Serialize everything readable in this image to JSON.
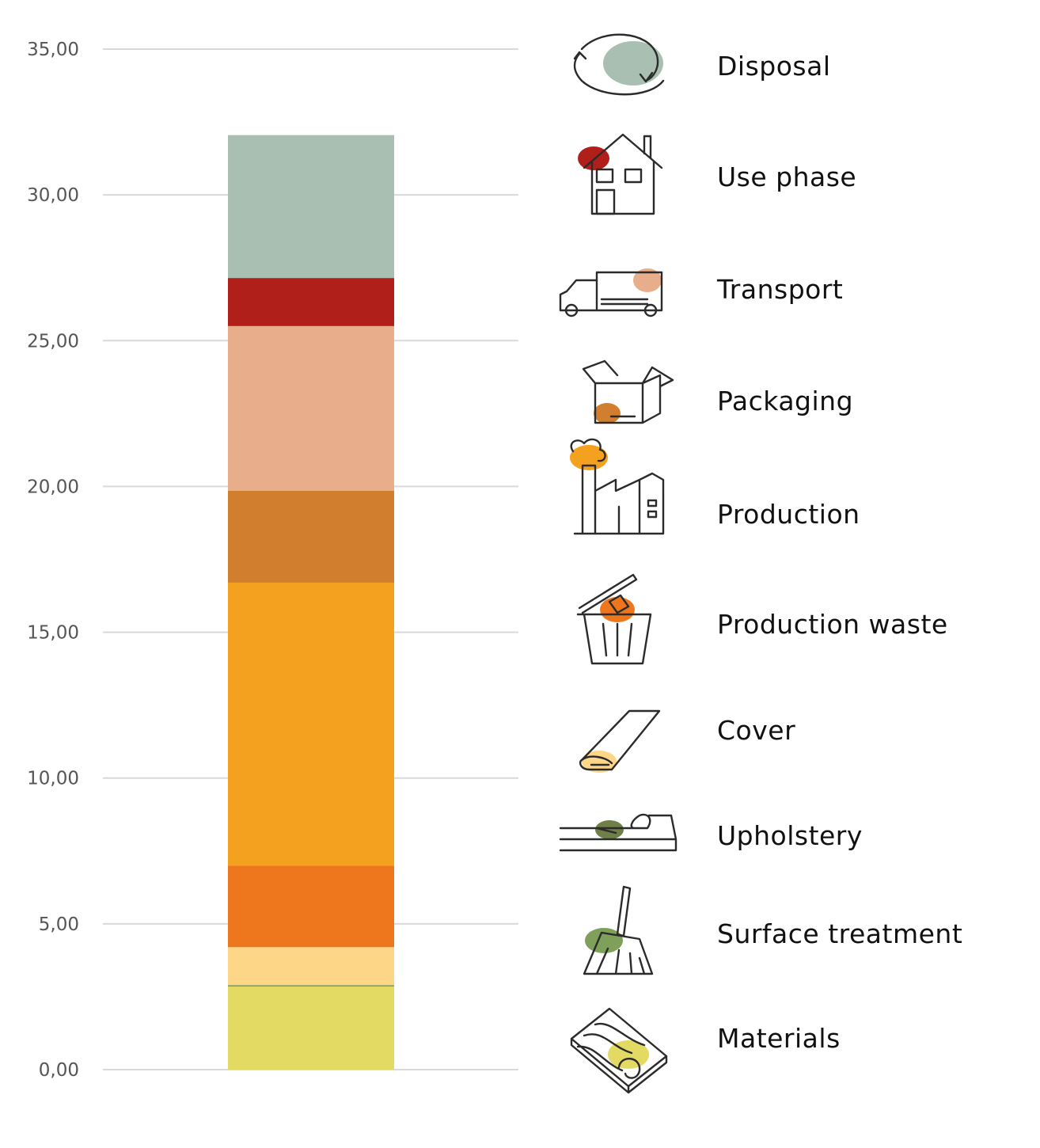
{
  "chart_data": {
    "type": "bar",
    "stacked": true,
    "ylim": [
      0,
      35
    ],
    "yticks": [
      "0,00",
      "5,00",
      "10,00",
      "15,00",
      "20,00",
      "25,00",
      "30,00",
      "35,00"
    ],
    "grid": true,
    "legend_placement": "right",
    "series": [
      {
        "name": "Materials",
        "value": 2.85,
        "color": "#E2DA63",
        "icon": "wood-plank-icon"
      },
      {
        "name": "Surface treatment",
        "value": 0.05,
        "color": "#7FA05A",
        "icon": "brush-icon"
      },
      {
        "name": "Upholstery",
        "value": 1.3,
        "color": "#FED688",
        "icon": "upholstery-foam-icon"
      },
      {
        "name": "Cover",
        "value": 2.8,
        "color": "#EE771E",
        "icon": "fabric-roll-icon"
      },
      {
        "name": "Production waste",
        "value": 9.7,
        "color": "#F4A11F",
        "icon": "trash-bin-icon"
      },
      {
        "name": "Production",
        "value": 3.15,
        "color": "#D17F2E",
        "icon": "factory-icon"
      },
      {
        "name": "Packaging",
        "value": 5.65,
        "color": "#E8AD8A",
        "icon": "box-icon"
      },
      {
        "name": "Transport",
        "value": 1.65,
        "color": "#B01F1A",
        "icon": "truck-icon"
      },
      {
        "name": "Use phase",
        "value": 4.9,
        "color": "#A9BFB1",
        "icon": "house-icon"
      }
    ],
    "legend": [
      {
        "name": "Disposal",
        "icon": "recycle-icon",
        "accent": "#A9BFB1"
      },
      {
        "name": "Use phase",
        "icon": "house-icon",
        "accent": "#B01F1A"
      },
      {
        "name": "Transport",
        "icon": "truck-icon",
        "accent": "#E8AD8A"
      },
      {
        "name": "Packaging",
        "icon": "box-icon",
        "accent": "#D17F2E"
      },
      {
        "name": "Production",
        "icon": "factory-icon",
        "accent": "#F4A11F"
      },
      {
        "name": "Production waste",
        "icon": "trash-bin-icon",
        "accent": "#EE771E"
      },
      {
        "name": "Cover",
        "icon": "fabric-roll-icon",
        "accent": "#FED688"
      },
      {
        "name": "Upholstery",
        "icon": "upholstery-foam-icon",
        "accent": "#6E7F47"
      },
      {
        "name": "Surface treatment",
        "icon": "brush-icon",
        "accent": "#7FA05A"
      },
      {
        "name": "Materials",
        "icon": "wood-plank-icon",
        "accent": "#E2DA63"
      }
    ]
  }
}
